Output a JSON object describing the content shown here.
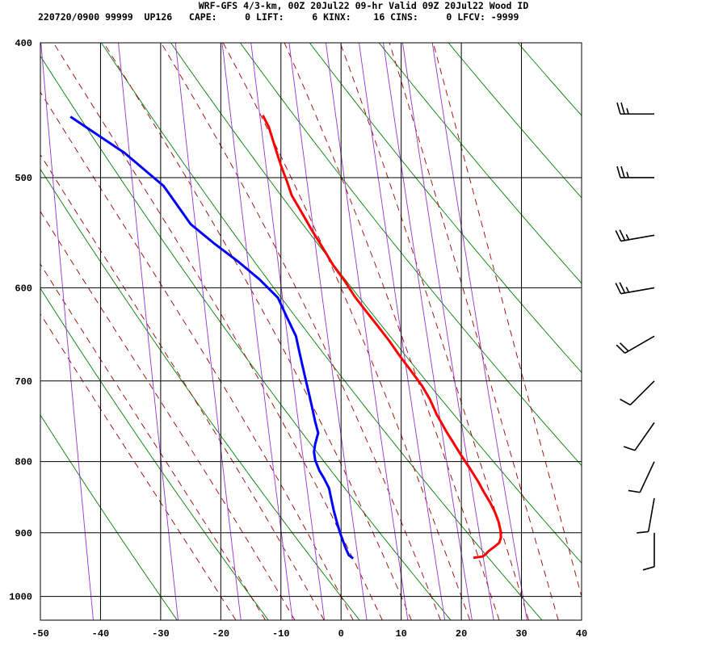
{
  "header": {
    "title": "WRF-GFS 4/3-km, 00Z 20Jul22 09-hr Valid 09Z 20Jul22 Wood ID",
    "meta": "220720/0900 99999  UP126   CAPE:     0 LIFT:     6 KINX:    16 CINS:     0 LFCV: -9999"
  },
  "colors": {
    "temperature": "#ff0000",
    "dewpoint": "#0000ff",
    "dry_adiabat": "#008000",
    "moist_adiabat": "#a00000",
    "mixing_ratio": "#9933cc",
    "grid": "#000000",
    "wind_barb": "#000000"
  },
  "chart_data": {
    "type": "skew-t",
    "title": "WRF-GFS 4/3-km, 00Z 20Jul22 09-hr Valid 09Z 20Jul22 Wood ID",
    "x_label": "",
    "y_label": "",
    "x_ticks": [
      -50,
      -40,
      -30,
      -20,
      -10,
      0,
      10,
      20,
      30,
      40
    ],
    "y_ticks": [
      400,
      500,
      600,
      700,
      800,
      900,
      1000
    ],
    "xlim": [
      -50,
      40
    ],
    "ylim": [
      1040,
      400
    ],
    "y_scale": "log",
    "grid": true,
    "series": [
      {
        "points": [
          [
            22,
            938
          ],
          [
            23.5,
            936
          ],
          [
            24,
            933
          ],
          [
            24.5,
            928
          ],
          [
            25.5,
            921
          ],
          [
            26.3,
            915
          ],
          [
            26.6,
            907
          ],
          [
            26.5,
            896
          ],
          [
            26.2,
            884
          ],
          [
            25.6,
            870
          ],
          [
            24.8,
            856
          ],
          [
            23.8,
            842
          ],
          [
            22.8,
            827
          ],
          [
            21.5,
            810
          ],
          [
            20,
            792
          ],
          [
            18.8,
            777
          ],
          [
            17.5,
            761
          ],
          [
            15.9,
            740
          ],
          [
            14.8,
            722
          ],
          [
            13.5,
            706
          ],
          [
            11.7,
            689
          ],
          [
            9.8,
            672
          ],
          [
            8,
            655
          ],
          [
            6.2,
            640
          ],
          [
            4.2,
            624
          ],
          [
            2.3,
            609
          ],
          [
            0.7,
            594
          ],
          [
            -1.3,
            578
          ],
          [
            -3,
            562
          ],
          [
            -4.8,
            546
          ],
          [
            -6.5,
            530
          ],
          [
            -8.2,
            515
          ],
          [
            -9,
            503
          ],
          [
            -10,
            490
          ],
          [
            -11,
            475
          ],
          [
            -12,
            460
          ],
          [
            -13,
            451
          ]
        ]
      },
      {
        "points": [
          [
            2,
            939
          ],
          [
            1.3,
            934
          ],
          [
            0.8,
            924
          ],
          [
            0.3,
            912
          ],
          [
            -0.2,
            899
          ],
          [
            -0.7,
            884
          ],
          [
            -1.2,
            868
          ],
          [
            -1.6,
            852
          ],
          [
            -2,
            836
          ],
          [
            -2.8,
            823
          ],
          [
            -3.6,
            812
          ],
          [
            -4.3,
            798
          ],
          [
            -4.5,
            787
          ],
          [
            -4.3,
            777
          ],
          [
            -3.8,
            763
          ],
          [
            -4.3,
            749
          ],
          [
            -4.7,
            735
          ],
          [
            -5.3,
            716
          ],
          [
            -5.9,
            698
          ],
          [
            -6.5,
            680
          ],
          [
            -7,
            665
          ],
          [
            -7.5,
            650
          ],
          [
            -9,
            630
          ],
          [
            -10.5,
            610
          ],
          [
            -13.5,
            592
          ],
          [
            -17,
            575
          ],
          [
            -21,
            558
          ],
          [
            -25,
            540
          ],
          [
            -29.5,
            507
          ],
          [
            -36,
            480
          ],
          [
            -45,
            452
          ]
        ]
      }
    ],
    "winds": [
      {
        "p": 450,
        "dir": 270,
        "kt": 25
      },
      {
        "p": 500,
        "dir": 270,
        "kt": 25
      },
      {
        "p": 550,
        "dir": 260,
        "kt": 25
      },
      {
        "p": 600,
        "dir": 260,
        "kt": 25
      },
      {
        "p": 650,
        "dir": 240,
        "kt": 20
      },
      {
        "p": 700,
        "dir": 225,
        "kt": 10
      },
      {
        "p": 750,
        "dir": 215,
        "kt": 10
      },
      {
        "p": 800,
        "dir": 205,
        "kt": 10
      },
      {
        "p": 850,
        "dir": 190,
        "kt": 10
      },
      {
        "p": 900,
        "dir": 180,
        "kt": 10
      }
    ]
  }
}
